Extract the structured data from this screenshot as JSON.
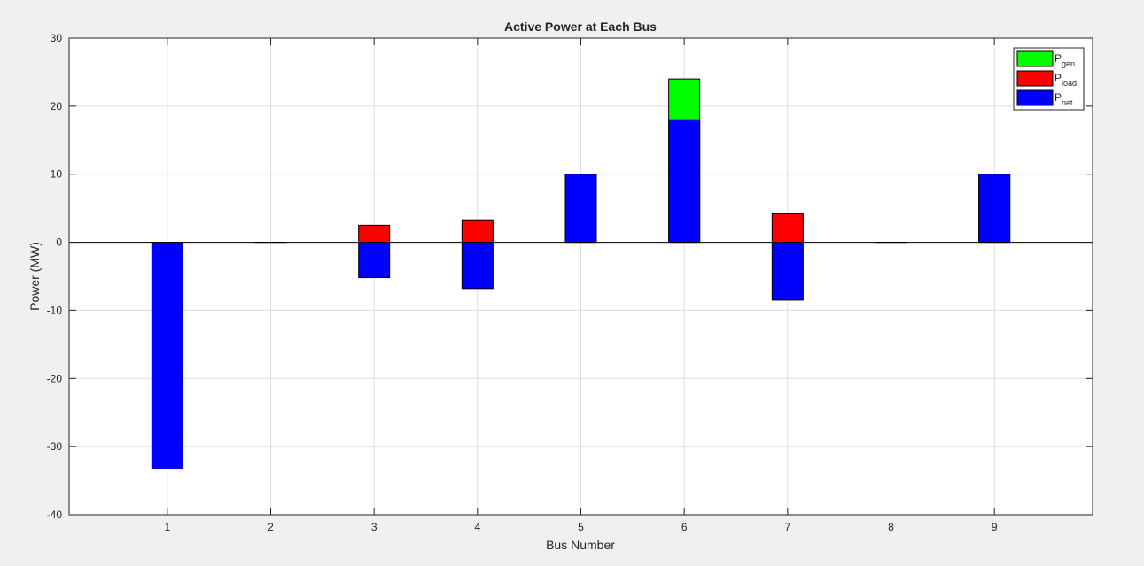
{
  "chart_data": {
    "type": "bar",
    "title": "Active Power at Each Bus",
    "xlabel": "Bus Number",
    "ylabel": "Power (MW)",
    "categories": [
      "1",
      "2",
      "3",
      "4",
      "5",
      "6",
      "7",
      "8",
      "9"
    ],
    "yticks": [
      "30",
      "20",
      "10",
      "0",
      "-10",
      "-20",
      "-30",
      "-40"
    ],
    "ylim": [
      -40,
      30
    ],
    "xlim": [
      0.05,
      9.95
    ],
    "grid": true,
    "legend_position": "top-right",
    "series": [
      {
        "name": "P",
        "subscript": "gen",
        "color": "#00ff00",
        "values": [
          0,
          0,
          0,
          0,
          10,
          24,
          0,
          0,
          10
        ]
      },
      {
        "name": "P",
        "subscript": "load",
        "color": "#ff0000",
        "values": [
          0,
          0,
          2.5,
          3.3,
          0,
          0,
          4.2,
          0,
          0
        ]
      },
      {
        "name": "P",
        "subscript": "net",
        "color": "#0000ff",
        "values": [
          -33.3,
          0,
          -5.2,
          -6.8,
          10,
          18,
          -8.5,
          0,
          10
        ]
      }
    ]
  }
}
